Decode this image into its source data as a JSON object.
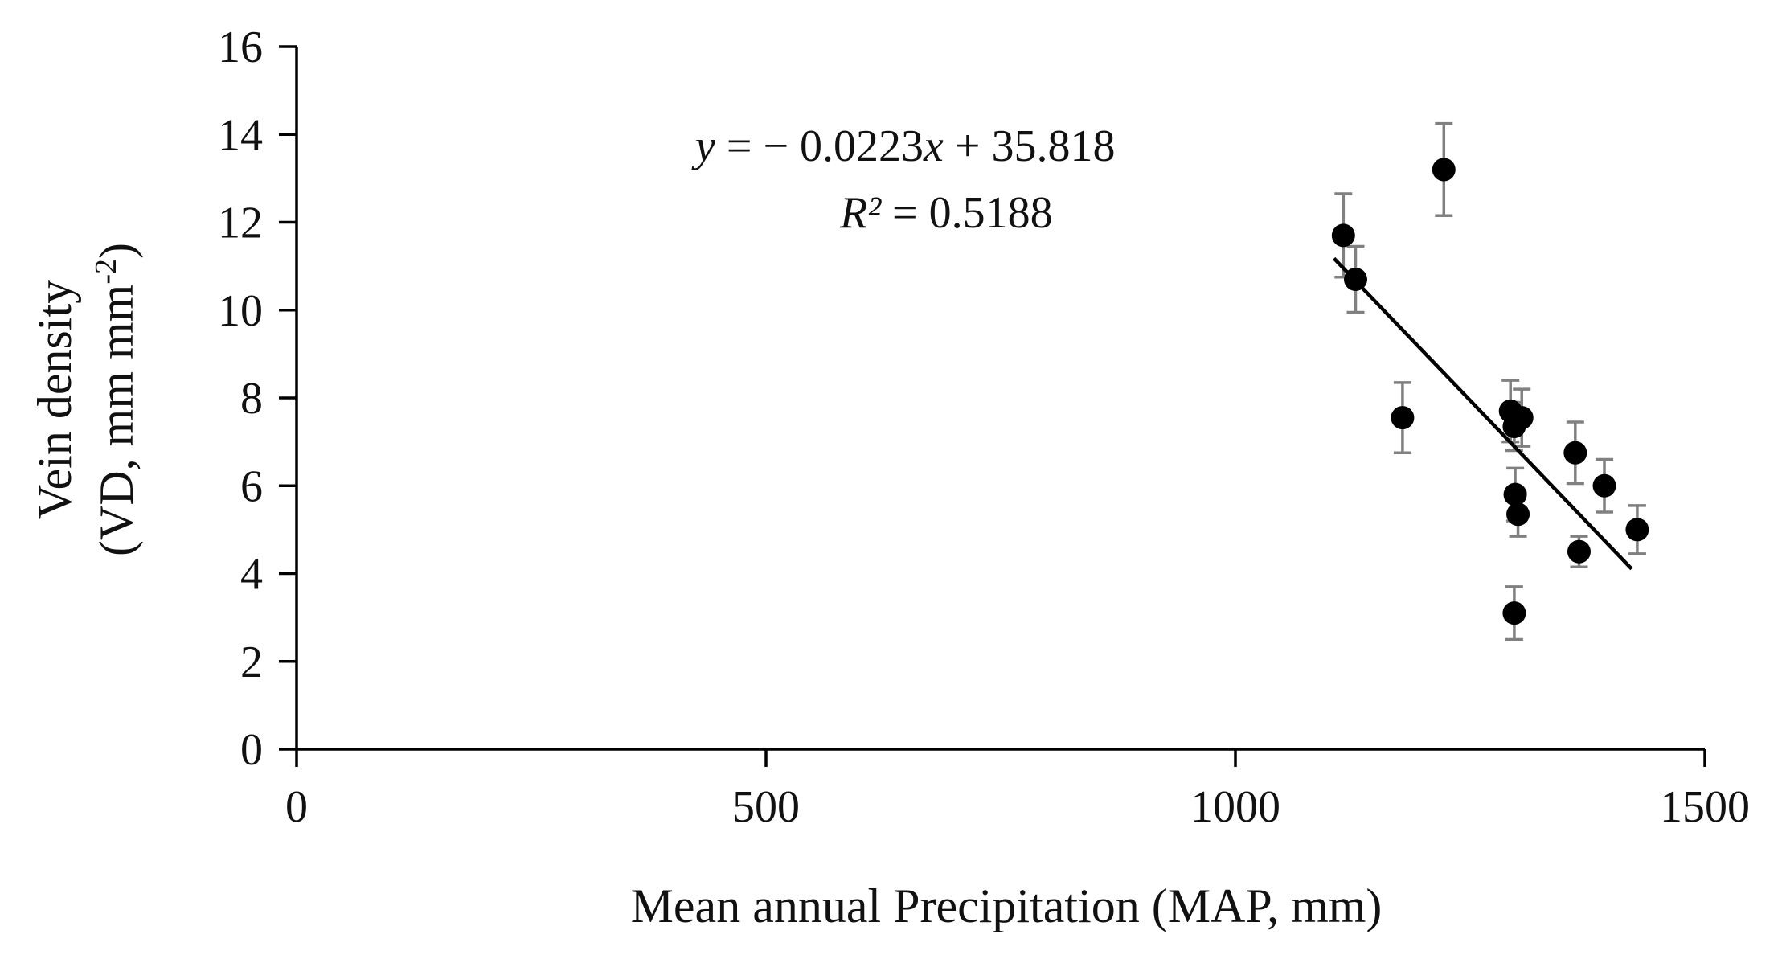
{
  "chart_data": {
    "type": "scatter",
    "xlabel": "Mean annual Precipitation (MAP, mm)",
    "ylabel_line1": "Vein density",
    "ylabel_line2_base": "(VD, mm mm",
    "ylabel_line2_sup": "-2",
    "ylabel_line2_end": ")",
    "xlim": [
      0,
      1500
    ],
    "ylim": [
      0,
      16
    ],
    "xticks": [
      0,
      500,
      1000,
      1500
    ],
    "yticks": [
      0,
      2,
      4,
      6,
      8,
      10,
      12,
      14,
      16
    ],
    "grid": false,
    "legend": "none",
    "points": [
      {
        "x": 1115,
        "y": 11.7,
        "err": 0.95
      },
      {
        "x": 1128,
        "y": 10.7,
        "err": 0.75
      },
      {
        "x": 1178,
        "y": 7.55,
        "err": 0.8
      },
      {
        "x": 1222,
        "y": 13.2,
        "err": 1.05
      },
      {
        "x": 1293,
        "y": 7.7,
        "err": 0.7
      },
      {
        "x": 1297,
        "y": 7.35,
        "err": 0.55
      },
      {
        "x": 1305,
        "y": 7.55,
        "err": 0.65
      },
      {
        "x": 1298,
        "y": 5.8,
        "err": 0.6
      },
      {
        "x": 1301,
        "y": 5.35,
        "err": 0.5
      },
      {
        "x": 1297,
        "y": 3.1,
        "err": 0.6
      },
      {
        "x": 1362,
        "y": 6.75,
        "err": 0.7
      },
      {
        "x": 1366,
        "y": 4.5,
        "err": 0.35
      },
      {
        "x": 1393,
        "y": 6.0,
        "err": 0.6
      },
      {
        "x": 1428,
        "y": 5.0,
        "err": 0.55
      }
    ],
    "trendline": {
      "slope": -0.0223,
      "intercept": 35.818,
      "x_range": [
        1105,
        1422
      ]
    },
    "equation": {
      "y": "y",
      "equals_minus": " = − 0.0223",
      "x": "x",
      "rest": " + 35.818"
    },
    "r_squared": {
      "r": "R²",
      "rest": " = 0.5188"
    },
    "colors": {
      "points": "#000000",
      "error_bars": "#808080",
      "trendline": "#000000",
      "axes": "#000000"
    }
  }
}
